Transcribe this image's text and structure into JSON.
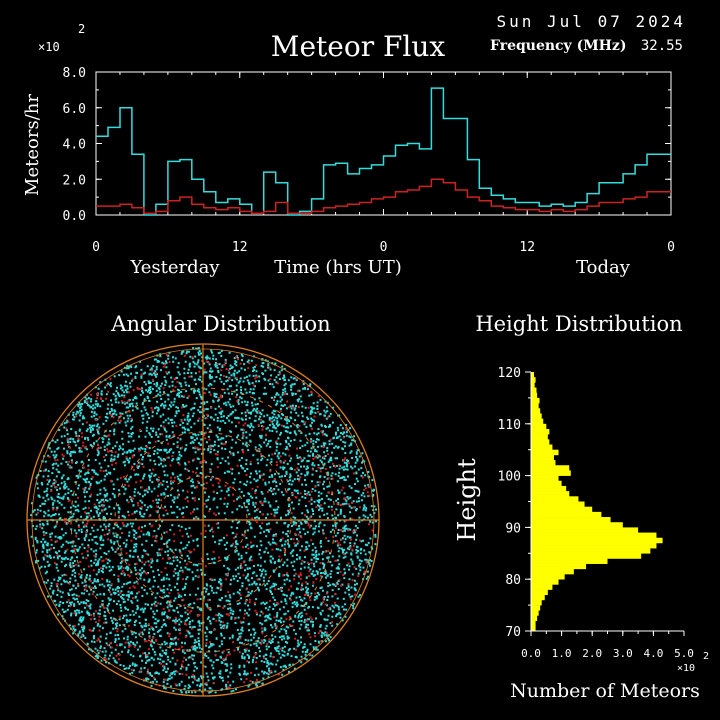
{
  "header": {
    "date": "Sun Jul 07 2024",
    "title": "Meteor Flux",
    "frequency_label": "Frequency (MHz)",
    "frequency_value": "32.55",
    "flux_multiplier": "×10",
    "flux_exponent": "2"
  },
  "angular": {
    "title": "Angular Distribution"
  },
  "height_chart": {
    "multiplier": "×10",
    "exponent": "2"
  },
  "colors": {
    "background": "#000000",
    "axis": "#ffffff",
    "cyan": "#33dddd",
    "red": "#cc2222",
    "yellow": "#ffff00",
    "orange": "#e08020"
  },
  "chart_data": [
    {
      "type": "line",
      "title": "Meteor Flux",
      "xlabel": "Time (hrs UT)",
      "ylabel": "Meteors/hr",
      "x_ticks": [
        "0",
        "12",
        "0",
        "12",
        "0"
      ],
      "x_tick_hours": [
        0,
        12,
        24,
        36,
        48
      ],
      "x_group_labels": [
        "Yesterday",
        "Today"
      ],
      "y_ticks": [
        "0.0",
        "2.0",
        "4.0",
        "6.0",
        "8.0"
      ],
      "ylim": [
        0,
        8
      ],
      "xlim": [
        0,
        48
      ],
      "y_unit_multiplier": 100,
      "step": true,
      "series": [
        {
          "color": "#33dddd",
          "values": [
            4.4,
            4.9,
            6.0,
            3.4,
            0.0,
            0.6,
            3.0,
            3.1,
            2.0,
            1.3,
            0.7,
            0.9,
            0.6,
            0.1,
            2.4,
            1.8,
            0.0,
            0.2,
            0.9,
            2.8,
            2.9,
            2.3,
            2.6,
            2.8,
            3.3,
            3.9,
            4.0,
            3.7,
            7.1,
            5.4,
            5.4,
            3.1,
            1.5,
            1.1,
            0.9,
            0.7,
            0.7,
            0.5,
            0.6,
            0.5,
            0.7,
            1.2,
            1.8,
            1.8,
            2.3,
            2.8,
            3.4,
            3.4
          ]
        },
        {
          "color": "#cc2222",
          "values": [
            0.5,
            0.5,
            0.6,
            0.4,
            0.1,
            0.2,
            0.8,
            1.0,
            0.6,
            0.4,
            0.3,
            0.4,
            0.2,
            0.1,
            0.2,
            0.7,
            0.1,
            0.1,
            0.2,
            0.4,
            0.5,
            0.6,
            0.7,
            0.9,
            1.0,
            1.3,
            1.4,
            1.6,
            2.0,
            1.8,
            1.4,
            1.0,
            0.8,
            0.5,
            0.4,
            0.3,
            0.3,
            0.2,
            0.3,
            0.2,
            0.3,
            0.5,
            0.7,
            0.7,
            0.9,
            1.0,
            1.3,
            1.3
          ]
        }
      ]
    },
    {
      "type": "bar",
      "orientation": "horizontal",
      "title": "Height Distribution",
      "xlabel": "Number of Meteors",
      "ylabel": "Height",
      "x_ticks": [
        "0.0",
        "1.0",
        "2.0",
        "3.0",
        "4.0",
        "5.0"
      ],
      "y_ticks": [
        "70",
        "80",
        "90",
        "100",
        "110",
        "120"
      ],
      "xlim": [
        0,
        5
      ],
      "ylim": [
        70,
        120
      ],
      "x_unit_multiplier": 100,
      "bin_start": 70,
      "bin_width": 1,
      "color": "#ffff00",
      "values": [
        0.15,
        0.15,
        0.2,
        0.25,
        0.3,
        0.35,
        0.45,
        0.55,
        0.7,
        0.9,
        1.1,
        1.4,
        1.8,
        2.5,
        3.6,
        3.9,
        4.1,
        4.3,
        4.1,
        3.5,
        3.0,
        2.6,
        2.3,
        2.0,
        1.75,
        1.55,
        1.25,
        1.15,
        1.0,
        0.9,
        1.3,
        1.25,
        0.8,
        0.75,
        0.9,
        0.7,
        0.6,
        0.55,
        0.6,
        0.5,
        0.4,
        0.35,
        0.3,
        0.25,
        0.28,
        0.2,
        0.18,
        0.12,
        0.15,
        0.1
      ]
    }
  ]
}
